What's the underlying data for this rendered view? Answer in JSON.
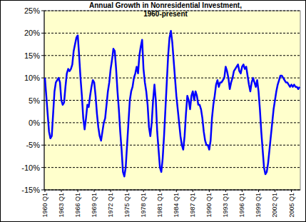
{
  "chart_data": {
    "type": "line",
    "title": "Annual Growth in Nonresidential Investment, 1960-present",
    "categories": [
      "1960 Q1",
      null,
      null,
      null,
      null,
      null,
      null,
      null,
      null,
      null,
      null,
      null,
      "1963 Q1",
      null,
      null,
      null,
      null,
      null,
      null,
      null,
      null,
      null,
      null,
      null,
      "1966 Q1",
      null,
      null,
      null,
      null,
      null,
      null,
      null,
      null,
      null,
      null,
      null,
      "1969 Q1",
      null,
      null,
      null,
      null,
      null,
      null,
      null,
      null,
      null,
      null,
      null,
      "1972 Q1",
      null,
      null,
      null,
      null,
      null,
      null,
      null,
      null,
      null,
      null,
      null,
      "1975 Q1",
      null,
      null,
      null,
      null,
      null,
      null,
      null,
      null,
      null,
      null,
      null,
      "1978 Q1",
      null,
      null,
      null,
      null,
      null,
      null,
      null,
      null,
      null,
      null,
      null,
      "1981 Q1",
      null,
      null,
      null,
      null,
      null,
      null,
      null,
      null,
      null,
      null,
      null,
      "1984 Q1",
      null,
      null,
      null,
      null,
      null,
      null,
      null,
      null,
      null,
      null,
      null,
      "1987 Q1",
      null,
      null,
      null,
      null,
      null,
      null,
      null,
      null,
      null,
      null,
      null,
      "1990 Q1",
      null,
      null,
      null,
      null,
      null,
      null,
      null,
      null,
      null,
      null,
      null,
      "1993 Q1",
      null,
      null,
      null,
      null,
      null,
      null,
      null,
      null,
      null,
      null,
      null,
      "1996 Q1",
      null,
      null,
      null,
      null,
      null,
      null,
      null,
      null,
      null,
      null,
      null,
      "1999 Q1",
      null,
      null,
      null,
      null,
      null,
      null,
      null,
      null,
      null,
      null,
      null,
      "2002 Q1",
      null,
      null,
      null,
      null,
      null,
      null,
      null,
      null,
      null,
      null,
      null,
      "2005 Q1",
      null,
      null,
      null,
      null,
      null,
      null
    ],
    "series": [
      {
        "name": "Annual Growth in Nonresidential Investment",
        "color": "#0000ff",
        "values": [
          10,
          6,
          2,
          -2,
          -3.5,
          -3,
          2,
          7,
          9,
          9.5,
          10,
          9,
          5,
          4,
          4.5,
          8,
          11,
          12,
          11.5,
          12,
          13,
          16,
          17.5,
          19,
          19.5,
          15,
          10,
          6,
          1,
          -1.5,
          1,
          4,
          3.5,
          6,
          8,
          9.5,
          9,
          6,
          2,
          -1,
          -3,
          -4,
          -2,
          0,
          1,
          4,
          7,
          9,
          12,
          14,
          16.5,
          16,
          12,
          7,
          3,
          -2,
          -6,
          -11,
          -12,
          -10,
          -5,
          0,
          5,
          7,
          8,
          10,
          11,
          12.5,
          11,
          15,
          17,
          18.5,
          12,
          9,
          7,
          4,
          -1,
          -3,
          0,
          5,
          8.5,
          5,
          -2,
          -6,
          -10,
          -11,
          -8,
          -3,
          3,
          9,
          15,
          19,
          20.5,
          18,
          14,
          10,
          6,
          3,
          0,
          -3,
          -5,
          -6,
          -3,
          2,
          6,
          5,
          3,
          6,
          7,
          5,
          7,
          6,
          4,
          4,
          3,
          1,
          -2,
          -4,
          -5,
          -5,
          -6,
          -4,
          1,
          4,
          6,
          8.5,
          9.5,
          8,
          9,
          9,
          9.5,
          10,
          12.5,
          11.5,
          10,
          7.5,
          9,
          10,
          11.5,
          12,
          12.5,
          13,
          11.5,
          11,
          12.5,
          13,
          12,
          12.5,
          10.5,
          8.5,
          7,
          9,
          10,
          9,
          8,
          9.5,
          7,
          3,
          -2,
          -6,
          -10,
          -11.5,
          -11,
          -9,
          -6,
          -3,
          0,
          3,
          5,
          7,
          8.5,
          9.5,
          10.5,
          10.5,
          10,
          9.5,
          9,
          9,
          8.5,
          8,
          8.5,
          8,
          8.5,
          8,
          8,
          7.5,
          8
        ]
      }
    ],
    "ylim": [
      -15,
      25
    ],
    "yticks": [
      {
        "value": -15,
        "label": "-15%"
      },
      {
        "value": -10,
        "label": "-10%"
      },
      {
        "value": -5,
        "label": "-5%"
      },
      {
        "value": 0,
        "label": "0%"
      },
      {
        "value": 5,
        "label": "5%"
      },
      {
        "value": 10,
        "label": "10%"
      },
      {
        "value": 15,
        "label": "15%"
      },
      {
        "value": 20,
        "label": "20%"
      },
      {
        "value": 25,
        "label": "25%"
      }
    ],
    "grid": true
  }
}
